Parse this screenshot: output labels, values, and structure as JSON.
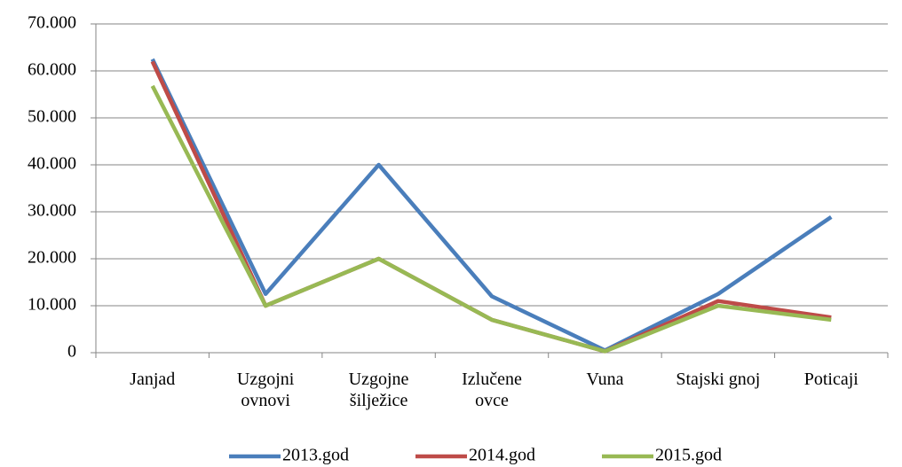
{
  "chart_data": {
    "type": "line",
    "categories": [
      "Janjad",
      "Uzgojni ovnovi",
      "Uzgojne šilježice",
      "Izlučene ovce",
      "Vuna",
      "Stajski gnoj",
      "Poticaji"
    ],
    "series": [
      {
        "name": "2013.god",
        "color": "#4a7ebb",
        "values": [
          62500,
          12500,
          40000,
          12000,
          500,
          12500,
          28900
        ]
      },
      {
        "name": "2014.god",
        "color": "#be4b48",
        "values": [
          62000,
          10000,
          20000,
          7000,
          300,
          11000,
          7500
        ]
      },
      {
        "name": "2015.god",
        "color": "#98b954",
        "values": [
          56800,
          10000,
          20000,
          7000,
          300,
          10000,
          7000
        ]
      }
    ],
    "ylim": [
      0,
      70000
    ],
    "yticks": [
      0,
      {
        "value": 10000,
        "label": "10.000"
      },
      {
        "value": 20000,
        "label": "20.000"
      },
      {
        "value": 30000,
        "label": "30.000"
      },
      {
        "value": 40000,
        "label": "40.000"
      },
      {
        "value": 50000,
        "label": "50.000"
      },
      {
        "value": 60000,
        "label": "60.000"
      },
      {
        "value": 70000,
        "label": "70.000"
      }
    ],
    "grid": true,
    "legend": "bottom"
  }
}
